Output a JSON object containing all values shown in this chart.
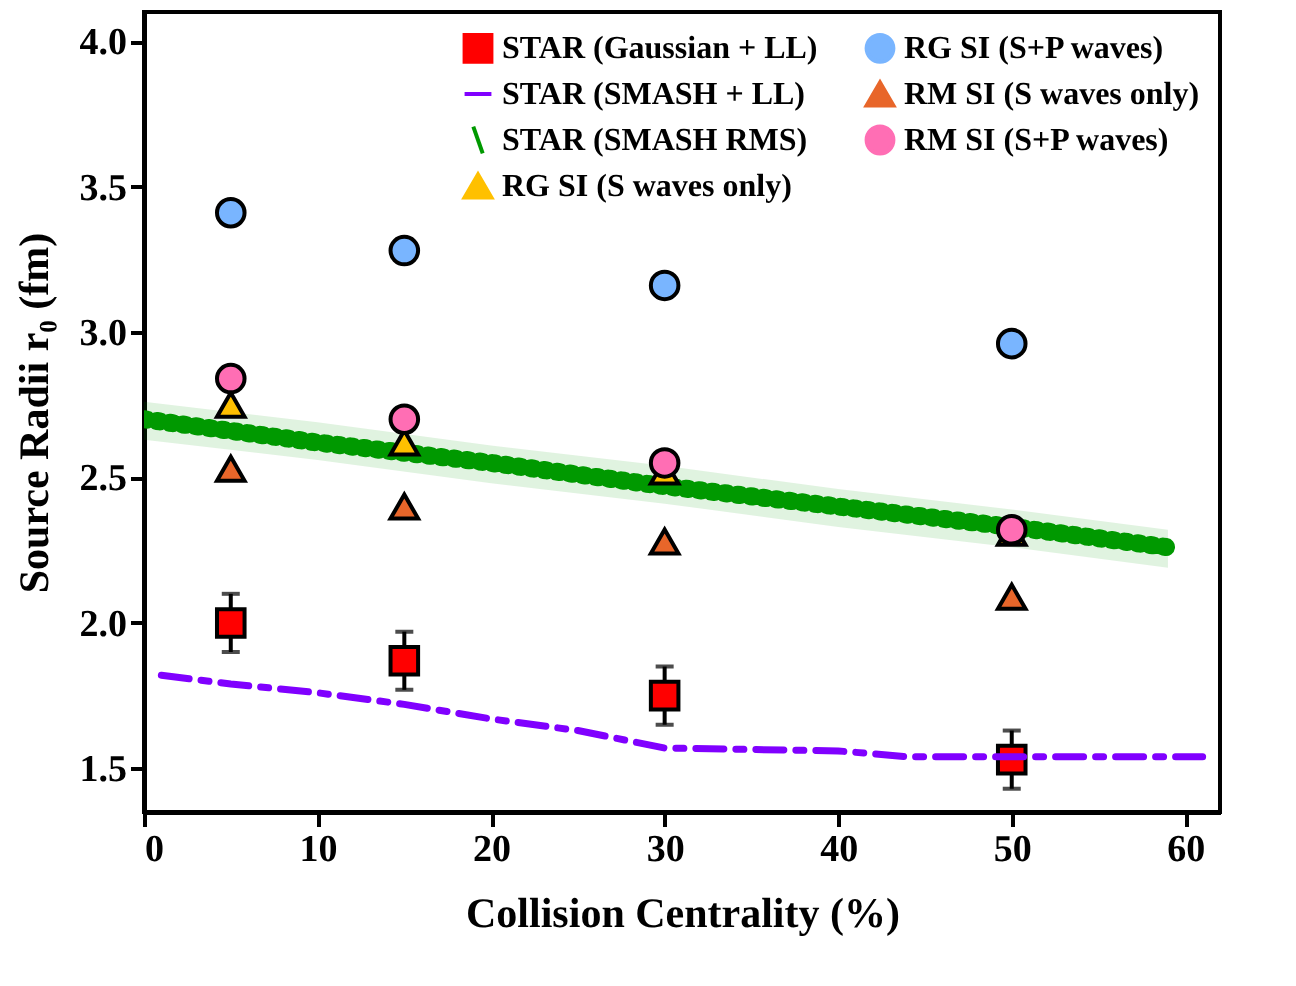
{
  "chart_data": {
    "type": "scatter",
    "xlabel": "Collision Centrality (%)",
    "ylabel": "Source Radii r₀ (fm)",
    "xlim": [
      0,
      62
    ],
    "ylim": [
      1.35,
      4.1
    ],
    "xticks": [
      0,
      10,
      20,
      30,
      40,
      50,
      60
    ],
    "yticks": [
      {
        "value": 1.5,
        "label": "1.5"
      },
      {
        "value": 2,
        "label": "2.0"
      },
      {
        "value": 2.5,
        "label": "2.5"
      },
      {
        "value": 3,
        "label": "3.0"
      },
      {
        "value": 3.5,
        "label": "3.5"
      },
      {
        "value": 4,
        "label": "4.0"
      }
    ],
    "grid": false,
    "legend": "top right",
    "series": [
      {
        "name": "STAR (Gaussian + LL)",
        "type": "scatter",
        "marker": "square",
        "color": "#ff0000",
        "x": [
          5,
          15,
          30,
          50
        ],
        "values": [
          2.0,
          1.87,
          1.75,
          1.53
        ],
        "errors": [
          0.1,
          0.1,
          0.1,
          0.1
        ]
      },
      {
        "name": "STAR (SMASH + LL)",
        "type": "line",
        "line_style": "dashdot",
        "color": "#8000ff",
        "x": [
          1,
          5,
          10,
          15,
          20,
          25,
          30,
          35,
          40,
          44,
          50,
          55,
          61
        ],
        "values": [
          1.82,
          1.79,
          1.76,
          1.72,
          1.67,
          1.63,
          1.57,
          1.565,
          1.56,
          1.54,
          1.54,
          1.54,
          1.54
        ]
      },
      {
        "name": "STAR (SMASH RMS)",
        "type": "line",
        "line_style": "dotted",
        "color": "#009900",
        "x": [
          0,
          10,
          20,
          30,
          40,
          50,
          59
        ],
        "values": [
          2.7,
          2.62,
          2.55,
          2.47,
          2.4,
          2.33,
          2.26
        ],
        "lower": [
          2.63,
          2.56,
          2.48,
          2.41,
          2.33,
          2.26,
          2.19
        ],
        "upper": [
          2.76,
          2.69,
          2.61,
          2.54,
          2.46,
          2.39,
          2.32
        ]
      },
      {
        "name": "RG SI (S waves only)",
        "marker": "triangle",
        "color": "#ffc000",
        "x": [
          5,
          15,
          30,
          50
        ],
        "values": [
          2.75,
          2.62,
          2.52,
          2.31
        ]
      },
      {
        "name": "RG SI (S+P waves)",
        "marker": "circle",
        "color": "#79b5ff",
        "x": [
          5,
          15,
          30,
          50
        ],
        "values": [
          3.41,
          3.28,
          3.16,
          2.96
        ]
      },
      {
        "name": "RM SI (S waves only)",
        "marker": "triangle",
        "color": "#e8662a",
        "x": [
          5,
          15,
          30,
          50
        ],
        "values": [
          2.53,
          2.4,
          2.28,
          2.09
        ]
      },
      {
        "name": "RM SI (S+P waves)",
        "marker": "circle",
        "color": "#ff6eb4",
        "x": [
          5,
          15,
          30,
          50
        ],
        "values": [
          2.84,
          2.7,
          2.55,
          2.32
        ]
      }
    ]
  }
}
